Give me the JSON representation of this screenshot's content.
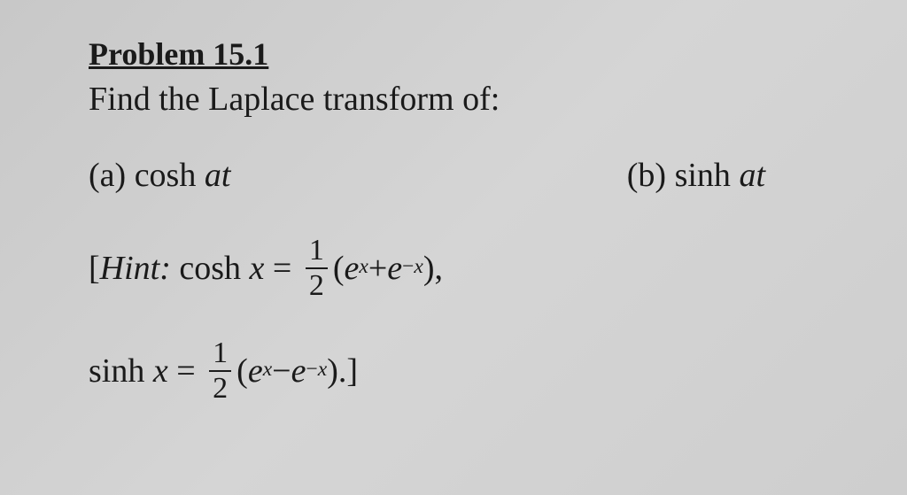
{
  "title": "Problem 15.1",
  "prompt": "Find the Laplace transform of:",
  "parts": {
    "a": {
      "label": "(a)",
      "func": "cosh",
      "arg": "at"
    },
    "b": {
      "label": "(b)",
      "func": "sinh",
      "arg": "at"
    }
  },
  "hint": {
    "prefix": "[",
    "label": "Hint:",
    "cosh": {
      "lhs_func": "cosh",
      "lhs_arg": "x",
      "eq": "=",
      "frac_num": "1",
      "frac_den": "2",
      "open": "(",
      "e1": "e",
      "exp1": "x",
      "plus": " + ",
      "e2": "e",
      "exp2_minus": "−",
      "exp2": "x",
      "close": "),"
    },
    "sinh": {
      "lhs_func": "sinh",
      "lhs_arg": "x",
      "eq": "=",
      "frac_num": "1",
      "frac_den": "2",
      "open": "(",
      "e1": "e",
      "exp1": "x",
      "minus": " − ",
      "e2": "e",
      "exp2_minus": "−",
      "exp2": "x",
      "close": ").]"
    }
  },
  "style": {
    "text_color": "#1a1a1a",
    "background": "#d0d0d0",
    "title_fontsize": 36,
    "body_fontsize": 38,
    "frac_fontsize": 34,
    "font_family": "Times New Roman"
  }
}
